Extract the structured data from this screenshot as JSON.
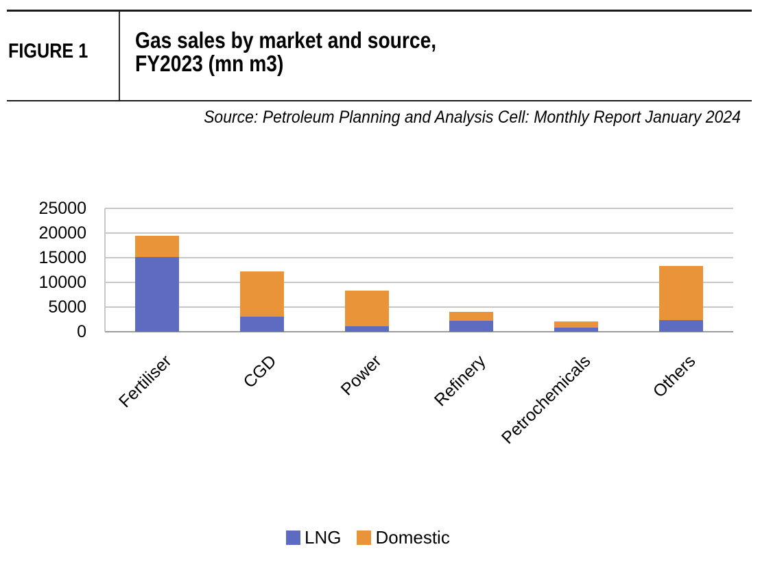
{
  "figure": {
    "label": "FIGURE 1",
    "title_lines": [
      "Gas sales by market and source,",
      "FY2023 (mn m3)"
    ],
    "source": "Source: Petroleum Planning and Analysis Cell: Monthly Report January 2024"
  },
  "colors": {
    "lng": "#5D6BC0",
    "domestic": "#EA9439",
    "gridline": "#C7C7C7",
    "axis": "#9B9B9B",
    "text": "#000000"
  },
  "chart_data": {
    "type": "bar",
    "stacked": true,
    "title": "Gas sales by market and source, FY2023 (mn m3)",
    "categories": [
      "Fertiliser",
      "CGD",
      "Power",
      "Refinery",
      "Petrochemicals",
      "Others"
    ],
    "series": [
      {
        "name": "LNG",
        "color": "#5D6BC0",
        "values": [
          15200,
          3000,
          1100,
          2200,
          900,
          2300
        ]
      },
      {
        "name": "Domestic",
        "color": "#EA9439",
        "values": [
          4300,
          9200,
          7200,
          1800,
          1200,
          11100
        ]
      }
    ],
    "totals": [
      19500,
      12200,
      8300,
      4000,
      2100,
      13400
    ],
    "xlabel": "",
    "ylabel": "",
    "ylim": [
      0,
      25000
    ],
    "yticks": [
      0,
      5000,
      10000,
      15000,
      20000,
      25000
    ],
    "grid": true,
    "legend_position": "bottom"
  }
}
